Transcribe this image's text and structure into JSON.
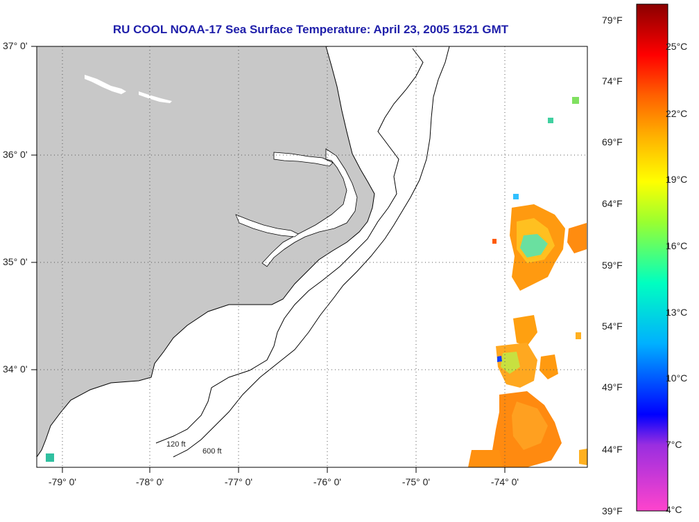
{
  "title": "RU COOL  NOAA-17  Sea Surface Temperature:  April 23, 2005 1521 GMT",
  "map": {
    "lat_labels": [
      "37° 0'",
      "36° 0'",
      "35° 0'",
      "34° 0'"
    ],
    "lon_labels": [
      "-79° 0'",
      "-78° 0'",
      "-77° 0'",
      "-76° 0'",
      "-75° 0'",
      "-74° 0'"
    ],
    "lat_range": [
      33.1,
      37.0
    ],
    "lon_range": [
      -79.25,
      -73.4
    ],
    "contour_labels": [
      "120 ft",
      "600 ft"
    ],
    "land_color": "#c8c8c8",
    "ocean_color": "#ffffff",
    "gridlines": "dotted"
  },
  "colorbar": {
    "fahrenheit_labels": [
      "79°F",
      "74°F",
      "69°F",
      "64°F",
      "59°F",
      "54°F",
      "49°F",
      "44°F",
      "39°F"
    ],
    "celsius_labels": [
      "25°C",
      "22°C",
      "19°C",
      "16°C",
      "13°C",
      "10°C",
      "7°C",
      "4°C"
    ],
    "range_celsius": [
      4,
      27
    ]
  }
}
